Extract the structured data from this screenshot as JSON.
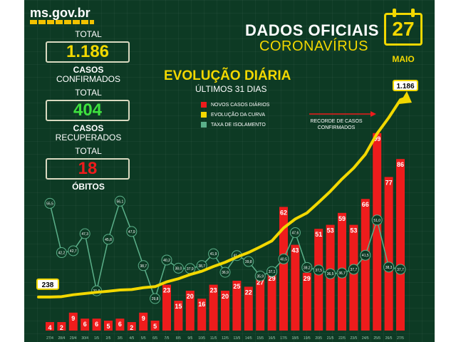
{
  "header": {
    "site": "ms.gov.br",
    "title_line1": "DADOS OFICIAIS",
    "title_line2": "CORONAVÍRUS",
    "calendar_day": "27",
    "calendar_month": "MAIO"
  },
  "stats": {
    "confirmed": {
      "total_label": "TOTAL",
      "value": "1.186",
      "label_bold": "CASOS",
      "label": "CONFIRMADOS",
      "color": "#f2d800"
    },
    "recovered": {
      "total_label": "TOTAL",
      "value": "404",
      "label_bold": "CASOS",
      "label": "RECUPERADOS",
      "color": "#3fe23f"
    },
    "deaths": {
      "total_label": "TOTAL",
      "value": "18",
      "label_bold": "ÓBITOS",
      "color": "#ee1c1c"
    }
  },
  "colors": {
    "background": "#0d3a24",
    "bars": "#ee1c1c",
    "curve": "#f2d800",
    "isolation": "#5bb08a"
  },
  "chart_data": {
    "type": "bar",
    "title": "EVOLUÇÃO DIÁRIA",
    "subtitle": "ÚLTIMOS 31 DIAS",
    "legend": [
      "NOVOS CASOS DIÁRIOS",
      "EVOLUÇÃO DA CURVA",
      "TAXA DE ISOLAMENTO"
    ],
    "annotation": "RECORDE DE CASOS CONFIRMADOS",
    "categories": [
      "27/4",
      "28/4",
      "29/4",
      "30/4",
      "1/5",
      "2/5",
      "3/5",
      "4/5",
      "5/5",
      "6/5",
      "7/5",
      "8/5",
      "9/5",
      "10/5",
      "11/5",
      "12/5",
      "13/5",
      "14/5",
      "15/5",
      "16/5",
      "17/5",
      "18/5",
      "19/5",
      "20/5",
      "21/5",
      "22/5",
      "23/5",
      "24/5",
      "25/5",
      "26/5",
      "27/5"
    ],
    "series": [
      {
        "name": "NOVOS CASOS DIÁRIOS",
        "values": [
          4,
          2,
          9,
          6,
          6,
          5,
          6,
          2,
          9,
          5,
          23,
          15,
          20,
          16,
          23,
          20,
          25,
          22,
          27,
          29,
          62,
          43,
          29,
          51,
          53,
          59,
          53,
          66,
          99,
          77,
          86
        ]
      },
      {
        "name": "EVOLUÇÃO DA CURVA",
        "start_label": "238",
        "end_label": "1.186",
        "values": [
          238,
          240,
          249,
          255,
          261,
          266,
          272,
          274,
          283,
          288,
          311,
          326,
          346,
          362,
          385,
          405,
          430,
          452,
          479,
          508,
          570,
          613,
          642,
          693,
          746,
          805,
          858,
          924,
          1023,
          1100,
          1186
        ]
      },
      {
        "name": "TAXA DE ISOLAMENTO",
        "values": [
          55.5,
          42.2,
          42.7,
          47.3,
          31.9,
          45.8,
          56.1,
          47.9,
          38.7,
          29.8,
          40.2,
          38.0,
          37.9,
          38.7,
          41.9,
          36.9,
          41.4,
          39.8,
          35.9,
          37.1,
          40.5,
          47.6,
          38.2,
          37.5,
          36.5,
          36.7,
          37.7,
          41.5,
          51.0,
          38.3,
          37.7
        ],
        "value_labels": [
          "55,5",
          "42,2",
          "42,7",
          "47,3",
          "31,9",
          "45,8",
          "56,1",
          "47,9",
          "38,7",
          "29,8",
          "40,2",
          "38,0",
          "37,9",
          "38,7",
          "41,9",
          "36,9",
          "41,4",
          "39,8",
          "35,9",
          "37,1",
          "40,5",
          "47,6",
          "38,2",
          "37,5",
          "36,5",
          "36,7",
          "37,7",
          "41,5",
          "51,0",
          "38,3",
          "37,7"
        ]
      }
    ]
  }
}
